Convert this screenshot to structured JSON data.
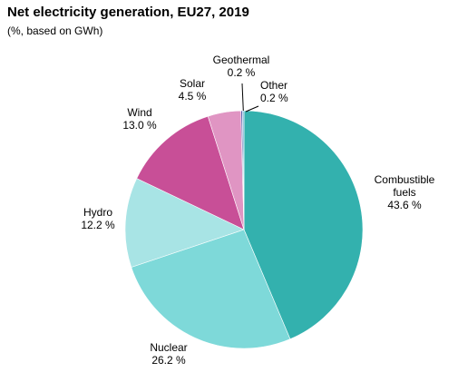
{
  "chart_data": {
    "type": "pie",
    "title": "Net electricity generation, EU27, 2019",
    "subtitle": "(%, based on GWh)",
    "slices": [
      {
        "name": "Combustible fuels",
        "name_lines": [
          "Combustible",
          "fuels"
        ],
        "value": 43.6,
        "value_label": "43.6 %",
        "color": "#33b1ae"
      },
      {
        "name": "Nuclear",
        "name_lines": [
          "Nuclear"
        ],
        "value": 26.2,
        "value_label": "26.2 %",
        "color": "#7ed9d9"
      },
      {
        "name": "Hydro",
        "name_lines": [
          "Hydro"
        ],
        "value": 12.2,
        "value_label": "12.2 %",
        "color": "#a8e4e5"
      },
      {
        "name": "Wind",
        "name_lines": [
          "Wind"
        ],
        "value": 13.0,
        "value_label": "13.0 %",
        "color": "#c84f97"
      },
      {
        "name": "Solar",
        "name_lines": [
          "Solar"
        ],
        "value": 4.5,
        "value_label": "4.5 %",
        "color": "#e095c3"
      },
      {
        "name": "Geothermal",
        "name_lines": [
          "Geothermal"
        ],
        "value": 0.2,
        "value_label": "0.2 %",
        "color": "#4a5aa8"
      },
      {
        "name": "Other",
        "name_lines": [
          "Other"
        ],
        "value": 0.2,
        "value_label": "0.2 %",
        "color": "#6fb3d6"
      }
    ],
    "start_angle": "12 o'clock",
    "direction": "clockwise",
    "legend": "none"
  }
}
